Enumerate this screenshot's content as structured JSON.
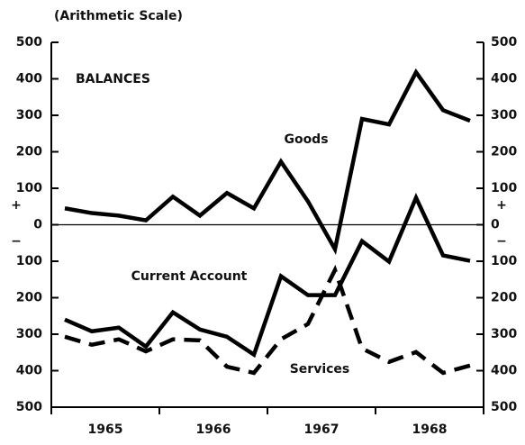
{
  "chart_data": {
    "type": "line",
    "subtitle": "(Arithmetic Scale)",
    "title": "BALANCES",
    "annotations": {
      "plus": "+",
      "minus": "−"
    },
    "x": [
      1965.125,
      1965.375,
      1965.625,
      1965.875,
      1966.125,
      1966.375,
      1966.625,
      1966.875,
      1967.125,
      1967.375,
      1967.625,
      1967.875,
      1968.125,
      1968.375,
      1968.625,
      1968.875
    ],
    "series": [
      {
        "name": "Goods",
        "color": "#000000",
        "dash": false,
        "values": [
          45,
          32,
          25,
          12,
          77,
          25,
          87,
          45,
          173,
          64,
          -67,
          290,
          275,
          418,
          314,
          285
        ]
      },
      {
        "name": "Current Account",
        "color": "#000000",
        "dash": false,
        "values": [
          -260,
          -292,
          -282,
          -334,
          -240,
          -287,
          -307,
          -356,
          -141,
          -193,
          -193,
          -45,
          -101,
          74,
          -84,
          -99
        ]
      },
      {
        "name": "Services",
        "color": "#000000",
        "dash": true,
        "values": [
          -307,
          -329,
          -314,
          -347,
          -314,
          -317,
          -389,
          -406,
          -314,
          -272,
          -124,
          -339,
          -376,
          -349,
          -406,
          -386
        ]
      }
    ],
    "xlim": [
      1965,
      1969
    ],
    "xticks": [
      {
        "value": 1965.5,
        "label": "1965"
      },
      {
        "value": 1966.5,
        "label": "1966"
      },
      {
        "value": 1967.5,
        "label": "1967"
      },
      {
        "value": 1968.5,
        "label": "1968"
      }
    ],
    "xminor": [
      1965,
      1966,
      1967,
      1968,
      1969
    ],
    "ylim": [
      -500,
      500
    ],
    "yticks": [
      500,
      400,
      300,
      200,
      100,
      0,
      {
        "value": -100,
        "label": "100"
      },
      {
        "value": -200,
        "label": "200"
      },
      {
        "value": -300,
        "label": "300"
      },
      {
        "value": -400,
        "label": "400"
      },
      {
        "value": -500,
        "label": "500"
      }
    ]
  }
}
